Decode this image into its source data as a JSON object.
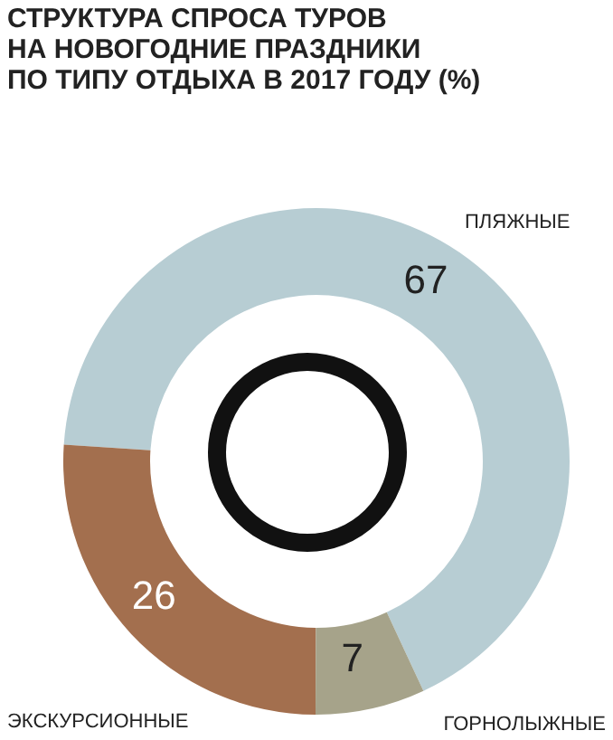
{
  "chart_data": {
    "type": "donut",
    "title": "СТРУКТУРА СПРОСА ТУРОВ\nНА НОВОГОДНИЕ ПРАЗДНИКИ\nПО ТИПУ ОТДЫХА В 2017 ГОДУ (%)",
    "categories": [
      "ПЛЯЖНЫЕ",
      "ЭКСКУРСИОННЫЕ",
      "ГОРНОЛЫЖНЫЕ"
    ],
    "values": [
      67,
      26,
      7
    ],
    "colors": [
      "#b7cdd3",
      "#a36f4e",
      "#a6a38a"
    ],
    "data_labels": true
  }
}
